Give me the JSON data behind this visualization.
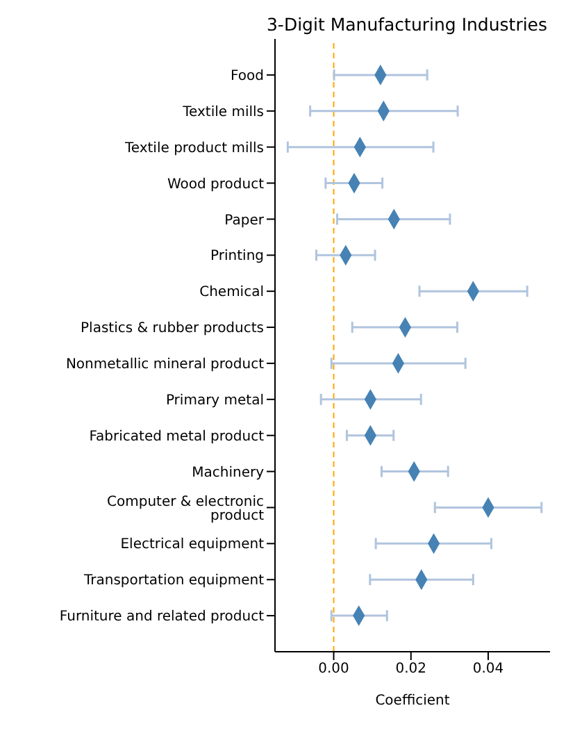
{
  "chart_data": {
    "type": "scatter",
    "title": "3-Digit Manufacturing Industries",
    "xlabel": "Coefficient",
    "categories": [
      "Food",
      "Textile mills",
      "Textile product mills",
      "Wood product",
      "Paper",
      "Printing",
      "Chemical",
      "Plastics & rubber products",
      "Nonmetallic mineral product",
      "Primary metal",
      "Fabricated metal product",
      "Machinery",
      "Computer & electronic product",
      "Electrical equipment",
      "Transportation equipment",
      "Furniture and related product"
    ],
    "orientation": "horizontal",
    "series": [
      {
        "color": "#4682b4",
        "values": [
          0.0121,
          0.0129,
          0.0068,
          0.0053,
          0.0156,
          0.0031,
          0.0361,
          0.0185,
          0.0167,
          0.0095,
          0.0095,
          0.0208,
          0.04,
          0.0259,
          0.0227,
          0.0065
        ],
        "errors": [
          [
            0.0001,
            0.0242
          ],
          [
            -0.0061,
            0.0321
          ],
          [
            -0.0119,
            0.0258
          ],
          [
            -0.0021,
            0.0126
          ],
          [
            0.0009,
            0.0301
          ],
          [
            -0.0045,
            0.0107
          ],
          [
            0.0222,
            0.0501
          ],
          [
            0.0048,
            0.032
          ],
          [
            -0.0006,
            0.0341
          ],
          [
            -0.0033,
            0.0226
          ],
          [
            0.0034,
            0.0155
          ],
          [
            0.0124,
            0.0296
          ],
          [
            0.0262,
            0.0538
          ],
          [
            0.0109,
            0.0408
          ],
          [
            0.0094,
            0.0361
          ],
          [
            -0.0006,
            0.0138
          ]
        ]
      }
    ],
    "xlim": [
      -0.0152,
      0.056
    ],
    "xticks": [
      {
        "value": 0,
        "label": "0.00"
      },
      {
        "value": 0.02,
        "label": "0.02"
      },
      {
        "value": 0.04,
        "label": "0.04"
      }
    ],
    "ref_lines": [
      {
        "axis": "x",
        "value": 0,
        "color": "#ffa500",
        "line_style": "dashed"
      }
    ],
    "marker": "diamond",
    "grid": false,
    "legend": false
  }
}
